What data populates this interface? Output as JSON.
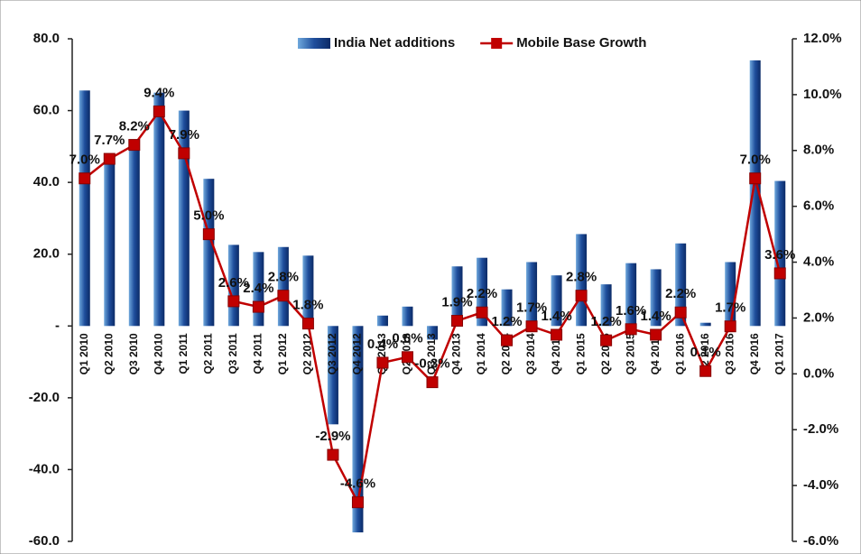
{
  "chart_data": {
    "type": "bar",
    "categories": [
      "Q1 2010",
      "Q2 2010",
      "Q3 2010",
      "Q4 2010",
      "Q1 2011",
      "Q2 2011",
      "Q3 2011",
      "Q4 2011",
      "Q1 2012",
      "Q2 2012",
      "Q3 2012",
      "Q4 2012",
      "Q1 2013",
      "Q2 2013",
      "Q3 2013",
      "Q4 2013",
      "Q1 2014",
      "Q2 2014",
      "Q3 2014",
      "Q4 2014",
      "Q1 2015",
      "Q2 2015",
      "Q3 2015",
      "Q4 2015",
      "Q1 2016",
      "Q2 2016",
      "Q3 2016",
      "Q4 2016",
      "Q1 2017"
    ],
    "series": [
      {
        "name": "India Net additions",
        "type": "bar",
        "color": "#1f4e9c",
        "values": [
          65.6,
          48,
          52,
          65,
          60,
          41,
          22.6,
          20.6,
          22,
          19.6,
          -27.4,
          -57.5,
          2.9,
          5.4,
          -3.8,
          16.6,
          19,
          10.2,
          17.8,
          14.1,
          25.6,
          11.6,
          17.5,
          15.8,
          23,
          0.9,
          17.8,
          74,
          40.4
        ]
      },
      {
        "name": "Mobile Base Growth",
        "type": "line",
        "axis": "y2",
        "color": "#c00000",
        "values": [
          7.0,
          7.7,
          8.2,
          9.4,
          7.9,
          5.0,
          2.6,
          2.4,
          2.8,
          1.8,
          -2.9,
          -4.6,
          0.4,
          0.6,
          -0.3,
          1.9,
          2.2,
          1.2,
          1.7,
          1.4,
          2.8,
          1.2,
          1.6,
          1.4,
          2.2,
          0.1,
          1.7,
          7.0,
          3.6
        ],
        "value_labels": [
          "7.0%",
          "7.7%",
          "8.2%",
          "9.4%",
          "7.9%",
          "5.0%",
          "2.6%",
          "2.4%",
          "2.8%",
          "1.8%",
          "-2.9%",
          "-4.6%",
          "0.4%",
          "0.6%",
          "-0.3%",
          "1.9%",
          "2.2%",
          "1.2%",
          "1.7%",
          "1.4%",
          "2.8%",
          "1.2%",
          "1.6%",
          "1.4%",
          "2.2%",
          "0.1%",
          "1.7%",
          "7.0%",
          "3.6%"
        ]
      }
    ],
    "ylim": [
      -60,
      80
    ],
    "yticks": [
      {
        "value": -60,
        "label": "-60.0"
      },
      {
        "value": -40,
        "label": "-40.0"
      },
      {
        "value": -20,
        "label": "-20.0"
      },
      {
        "value": 0,
        "label": "-"
      },
      {
        "value": 20,
        "label": "20.0"
      },
      {
        "value": 40,
        "label": "40.0"
      },
      {
        "value": 60,
        "label": "60.0"
      },
      {
        "value": 80,
        "label": "80.0"
      }
    ],
    "y2lim": [
      -6,
      12
    ],
    "y2ticks": [
      {
        "value": -6,
        "label": "-6.0%"
      },
      {
        "value": -4,
        "label": "-4.0%"
      },
      {
        "value": -2,
        "label": "-2.0%"
      },
      {
        "value": 0,
        "label": "0.0%"
      },
      {
        "value": 2,
        "label": "2.0%"
      },
      {
        "value": 4,
        "label": "4.0%"
      },
      {
        "value": 6,
        "label": "6.0%"
      },
      {
        "value": 8,
        "label": "8.0%"
      },
      {
        "value": 10,
        "label": "10.0%"
      },
      {
        "value": 12,
        "label": "12.0%"
      }
    ],
    "legend": "top"
  }
}
